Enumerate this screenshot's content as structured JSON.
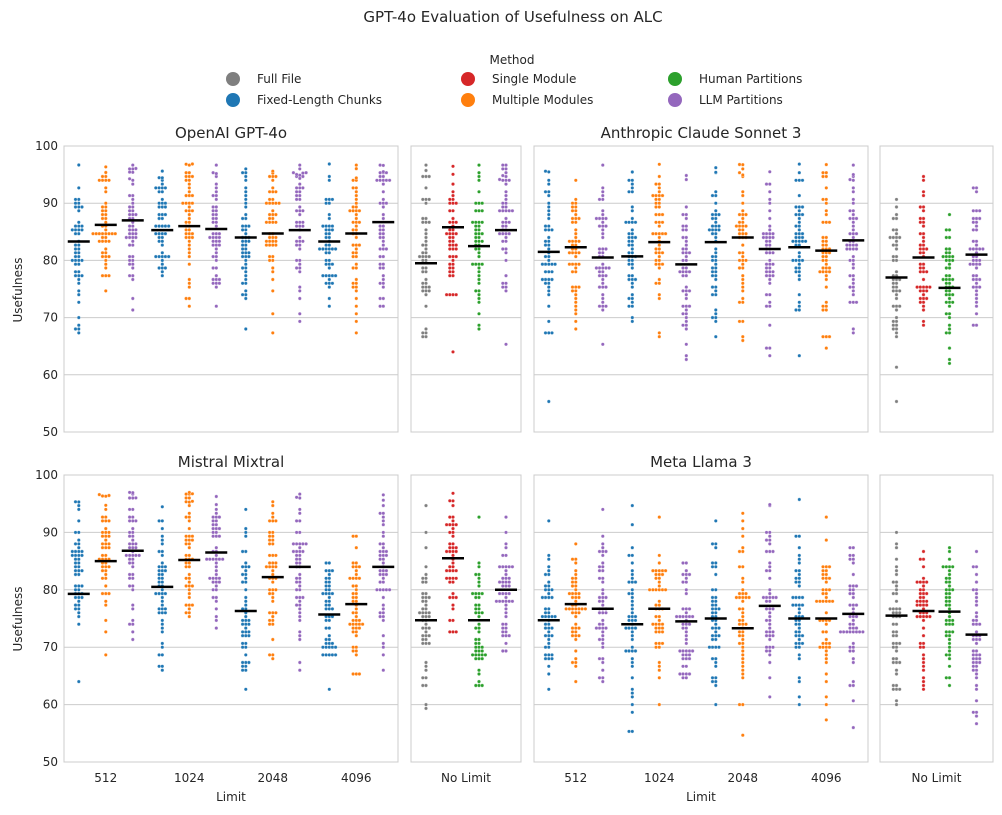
{
  "title": "GPT-4o Evaluation of Usefulness on ALC",
  "legend": {
    "title": "Method",
    "items": [
      {
        "key": "full",
        "label": "Full File",
        "color": "#7f7f7f"
      },
      {
        "key": "fixed",
        "label": "Fixed-Length Chunks",
        "color": "#1f77b4"
      },
      {
        "key": "single",
        "label": "Single Module",
        "color": "#d62728"
      },
      {
        "key": "multiple",
        "label": "Multiple Modules",
        "color": "#ff7f0e"
      },
      {
        "key": "human",
        "label": "Human Partitions",
        "color": "#2ca02c"
      },
      {
        "key": "llm",
        "label": "LLM Partitions",
        "color": "#9467bd"
      }
    ]
  },
  "axes": {
    "y_label": "Usefulness",
    "x_label": "Limit",
    "y_ticks": [
      "50",
      "60",
      "70",
      "80",
      "90",
      "100"
    ],
    "ylim": [
      50,
      100
    ],
    "limit_categories": [
      "512",
      "1024",
      "2048",
      "4096"
    ],
    "nolimit_category": "No Limit"
  },
  "chart_data": {
    "type": "scatter",
    "description_of_values": "median usefulness per method (black bars)",
    "panels": [
      {
        "title": "OpenAI GPT-4o",
        "limited": {
          "512": {
            "fixed": 83.3,
            "multiple": 86.2,
            "llm": 87.0
          },
          "1024": {
            "fixed": 85.3,
            "multiple": 86.0,
            "llm": 85.5
          },
          "2048": {
            "fixed": 84.0,
            "multiple": 84.7,
            "llm": 85.3
          },
          "4096": {
            "fixed": 83.3,
            "multiple": 84.7,
            "llm": 86.7
          }
        },
        "nolimit": {
          "full": 79.5,
          "single": 85.8,
          "human": 82.5,
          "llm": 85.3
        }
      },
      {
        "title": "Anthropic Claude Sonnet 3",
        "limited": {
          "512": {
            "fixed": 81.5,
            "multiple": 82.3,
            "llm": 80.5
          },
          "1024": {
            "fixed": 80.7,
            "multiple": 83.2,
            "llm": 79.3
          },
          "2048": {
            "fixed": 83.2,
            "multiple": 84.0,
            "llm": 82.0
          },
          "4096": {
            "fixed": 82.3,
            "multiple": 81.7,
            "llm": 83.5
          }
        },
        "nolimit": {
          "full": 77.0,
          "single": 80.5,
          "human": 75.2,
          "llm": 81.0
        }
      },
      {
        "title": "Mistral Mixtral",
        "limited": {
          "512": {
            "fixed": 79.3,
            "multiple": 85.0,
            "llm": 86.8
          },
          "1024": {
            "fixed": 80.5,
            "multiple": 85.2,
            "llm": 86.5
          },
          "2048": {
            "fixed": 76.3,
            "multiple": 82.2,
            "llm": 84.0
          },
          "4096": {
            "fixed": 75.7,
            "multiple": 77.5,
            "llm": 84.0
          }
        },
        "nolimit": {
          "full": 74.7,
          "single": 85.5,
          "human": 74.7,
          "llm": 80.0
        }
      },
      {
        "title": "Meta Llama 3",
        "limited": {
          "512": {
            "fixed": 74.7,
            "multiple": 77.5,
            "llm": 76.7
          },
          "1024": {
            "fixed": 74.0,
            "multiple": 76.7,
            "llm": 74.5
          },
          "2048": {
            "fixed": 75.0,
            "multiple": 73.3,
            "llm": 77.2
          },
          "4096": {
            "fixed": 75.0,
            "multiple": 75.0,
            "llm": 75.8
          }
        },
        "nolimit": {
          "full": 75.5,
          "single": 76.3,
          "human": 76.2,
          "llm": 72.2
        }
      }
    ]
  }
}
